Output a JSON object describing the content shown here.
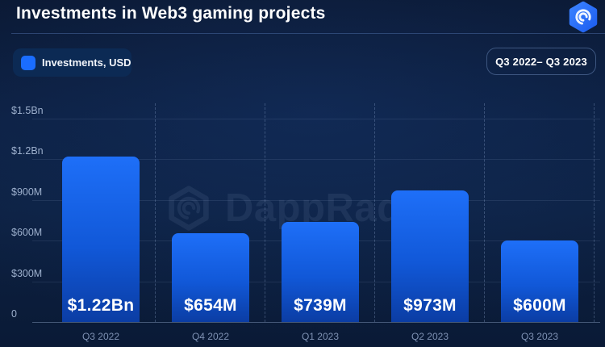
{
  "header": {
    "title": "Investments in Web3 gaming projects"
  },
  "legend": {
    "label": "Investments, USD",
    "swatch_color": "#1a6dff"
  },
  "range_badge": {
    "label": "Q3 2022– Q3 2023"
  },
  "watermark": {
    "text": "DappRadar"
  },
  "colors": {
    "background": "#0c1f40",
    "bar_top": "#1e6ff8",
    "bar_bottom": "#0b3da4",
    "accent_blue": "#1a6dff",
    "tick_text": "#9db0cd",
    "category_text": "#7e91b3"
  },
  "chart_data": {
    "type": "bar",
    "title": "Investments in Web3 gaming projects",
    "categories": [
      "Q3 2022",
      "Q4 2022",
      "Q1 2023",
      "Q2 2023",
      "Q3 2023"
    ],
    "series": [
      {
        "name": "Investments, USD",
        "values_musd": [
          1220,
          654,
          739,
          973,
          600
        ]
      }
    ],
    "bar_labels": [
      "$1.22Bn",
      "$654M",
      "$739M",
      "$973M",
      "$600M"
    ],
    "y_ticks": [
      {
        "label": "$1.5Bn",
        "value_musd": 1500
      },
      {
        "label": "$1.2Bn",
        "value_musd": 1200
      },
      {
        "label": "$900M",
        "value_musd": 900
      },
      {
        "label": "$600M",
        "value_musd": 600
      },
      {
        "label": "$300M",
        "value_musd": 300
      },
      {
        "label": "0",
        "value_musd": 0
      }
    ],
    "ylim_musd": [
      0,
      1500
    ],
    "xlabel": "",
    "ylabel": "Investments, USD",
    "period": "Q3 2022– Q3 2023",
    "grid": true,
    "legend_position": "top-left"
  }
}
